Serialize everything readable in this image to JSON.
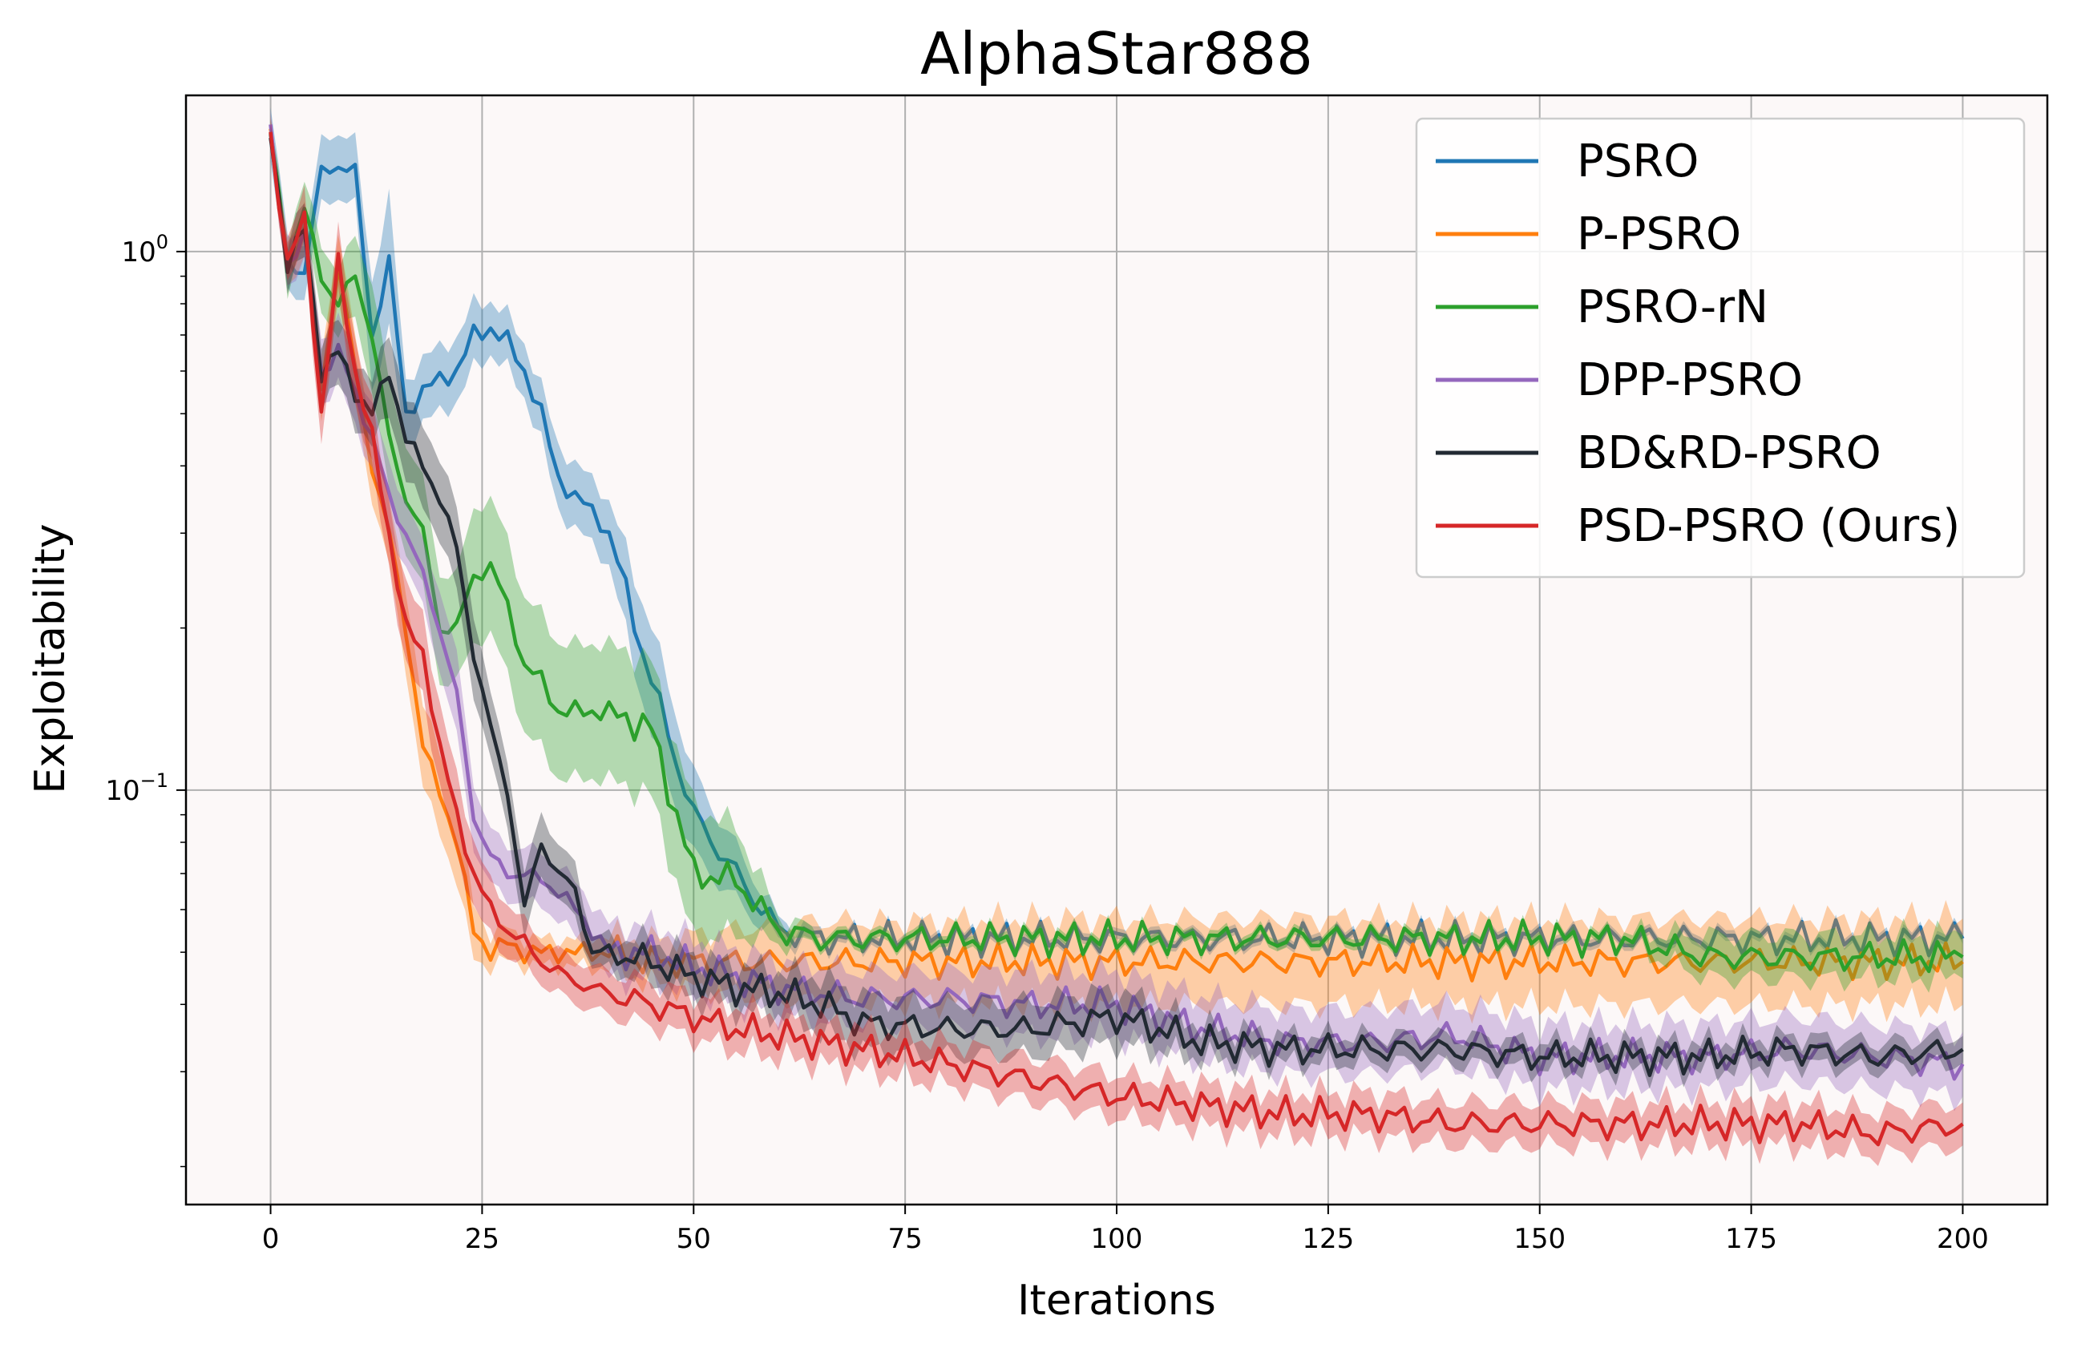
{
  "chart_data": {
    "type": "line",
    "title": "AlphaStar888",
    "xlabel": "Iterations",
    "ylabel": "Exploitability",
    "yscale": "log",
    "xlim": [
      -10,
      210
    ],
    "ylim": [
      0.017,
      1.95
    ],
    "xticks": [
      0,
      25,
      50,
      75,
      100,
      125,
      150,
      175,
      200
    ],
    "yticks": [
      {
        "value": 1.0,
        "base": "10",
        "exp": "0"
      },
      {
        "value": 0.1,
        "base": "10",
        "exp": "−1"
      }
    ],
    "grid": true,
    "legend_position": "upper right",
    "plot_background": "#fcf8f8",
    "x": [
      0,
      2,
      4,
      6,
      8,
      10,
      12,
      14,
      16,
      18,
      20,
      22,
      24,
      26,
      28,
      30,
      32,
      34,
      36,
      38,
      40,
      45,
      50,
      55,
      60,
      65,
      70,
      80,
      90,
      100,
      110,
      120,
      130,
      140,
      150,
      160,
      170,
      180,
      190,
      200
    ],
    "series": [
      {
        "name": "PSRO",
        "color": "#1f77b4",
        "values": [
          1.65,
          0.95,
          0.92,
          1.4,
          1.45,
          1.4,
          0.7,
          0.95,
          0.5,
          0.55,
          0.58,
          0.6,
          0.7,
          0.72,
          0.68,
          0.6,
          0.5,
          0.38,
          0.35,
          0.33,
          0.3,
          0.16,
          0.09,
          0.07,
          0.055,
          0.053,
          0.053,
          0.053,
          0.053,
          0.053,
          0.053,
          0.053,
          0.053,
          0.053,
          0.053,
          0.053,
          0.053,
          0.053,
          0.053,
          0.053
        ],
        "band": [
          0.1,
          0.1,
          0.1,
          0.12,
          0.12,
          0.12,
          0.2,
          0.25,
          0.12,
          0.12,
          0.12,
          0.12,
          0.12,
          0.1,
          0.1,
          0.1,
          0.1,
          0.12,
          0.12,
          0.12,
          0.12,
          0.2,
          0.15,
          0.1,
          0.04,
          0.02,
          0.02,
          0.02,
          0.02,
          0.02,
          0.02,
          0.02,
          0.02,
          0.02,
          0.02,
          0.02,
          0.02,
          0.02,
          0.02,
          0.02
        ]
      },
      {
        "name": "P-PSRO",
        "color": "#ff7f0e",
        "values": [
          1.65,
          0.95,
          1.1,
          0.55,
          0.95,
          0.6,
          0.4,
          0.3,
          0.2,
          0.12,
          0.1,
          0.08,
          0.055,
          0.05,
          0.052,
          0.05,
          0.05,
          0.05,
          0.05,
          0.05,
          0.05,
          0.048,
          0.048,
          0.048,
          0.048,
          0.048,
          0.048,
          0.048,
          0.048,
          0.048,
          0.048,
          0.048,
          0.048,
          0.048,
          0.048,
          0.048,
          0.048,
          0.048,
          0.048,
          0.048
        ],
        "band": [
          0.05,
          0.08,
          0.1,
          0.12,
          0.12,
          0.12,
          0.12,
          0.12,
          0.15,
          0.15,
          0.15,
          0.15,
          0.1,
          0.06,
          0.06,
          0.05,
          0.05,
          0.05,
          0.05,
          0.06,
          0.06,
          0.08,
          0.1,
          0.12,
          0.14,
          0.15,
          0.15,
          0.15,
          0.16,
          0.16,
          0.16,
          0.16,
          0.16,
          0.16,
          0.16,
          0.16,
          0.16,
          0.16,
          0.16,
          0.16
        ]
      },
      {
        "name": "PSRO-rN",
        "color": "#2ca02c",
        "values": [
          1.65,
          0.95,
          1.2,
          0.9,
          0.8,
          0.9,
          0.7,
          0.45,
          0.35,
          0.3,
          0.2,
          0.2,
          0.25,
          0.26,
          0.22,
          0.17,
          0.16,
          0.14,
          0.14,
          0.14,
          0.14,
          0.13,
          0.07,
          0.068,
          0.055,
          0.053,
          0.053,
          0.053,
          0.053,
          0.053,
          0.053,
          0.053,
          0.053,
          0.053,
          0.053,
          0.053,
          0.049,
          0.049,
          0.049,
          0.049
        ],
        "band": [
          0.05,
          0.1,
          0.1,
          0.12,
          0.12,
          0.15,
          0.2,
          0.2,
          0.2,
          0.2,
          0.2,
          0.2,
          0.25,
          0.25,
          0.25,
          0.25,
          0.25,
          0.25,
          0.25,
          0.25,
          0.25,
          0.25,
          0.25,
          0.2,
          0.05,
          0.02,
          0.02,
          0.02,
          0.02,
          0.02,
          0.02,
          0.02,
          0.02,
          0.02,
          0.02,
          0.02,
          0.08,
          0.08,
          0.08,
          0.08
        ]
      },
      {
        "name": "DPP-PSRO",
        "color": "#9467bd",
        "values": [
          1.65,
          0.95,
          1.05,
          0.6,
          0.65,
          0.55,
          0.45,
          0.35,
          0.3,
          0.25,
          0.2,
          0.15,
          0.09,
          0.075,
          0.07,
          0.07,
          0.068,
          0.065,
          0.06,
          0.055,
          0.05,
          0.05,
          0.047,
          0.045,
          0.043,
          0.042,
          0.041,
          0.041,
          0.04,
          0.04,
          0.036,
          0.034,
          0.034,
          0.035,
          0.032,
          0.032,
          0.032,
          0.033,
          0.032,
          0.031
        ],
        "band": [
          0.05,
          0.08,
          0.1,
          0.12,
          0.12,
          0.12,
          0.12,
          0.12,
          0.12,
          0.12,
          0.15,
          0.15,
          0.12,
          0.1,
          0.1,
          0.1,
          0.1,
          0.1,
          0.1,
          0.1,
          0.1,
          0.1,
          0.1,
          0.1,
          0.1,
          0.1,
          0.1,
          0.1,
          0.12,
          0.12,
          0.12,
          0.12,
          0.12,
          0.12,
          0.12,
          0.12,
          0.12,
          0.12,
          0.12,
          0.12
        ]
      },
      {
        "name": "BD&RD-PSRO",
        "color": "#222a33",
        "values": [
          1.65,
          0.95,
          1.1,
          0.6,
          0.65,
          0.55,
          0.5,
          0.6,
          0.45,
          0.4,
          0.35,
          0.28,
          0.18,
          0.13,
          0.1,
          0.06,
          0.08,
          0.07,
          0.065,
          0.05,
          0.05,
          0.048,
          0.045,
          0.043,
          0.042,
          0.04,
          0.037,
          0.036,
          0.036,
          0.038,
          0.034,
          0.033,
          0.033,
          0.033,
          0.032,
          0.032,
          0.032,
          0.033,
          0.032,
          0.033
        ],
        "band": [
          0.05,
          0.08,
          0.1,
          0.12,
          0.12,
          0.12,
          0.12,
          0.15,
          0.15,
          0.15,
          0.15,
          0.15,
          0.15,
          0.12,
          0.12,
          0.12,
          0.12,
          0.1,
          0.1,
          0.06,
          0.06,
          0.08,
          0.08,
          0.08,
          0.08,
          0.1,
          0.1,
          0.1,
          0.1,
          0.1,
          0.06,
          0.05,
          0.05,
          0.05,
          0.05,
          0.05,
          0.05,
          0.05,
          0.05,
          0.05
        ]
      },
      {
        "name": "PSD-PSRO (Ours)",
        "color": "#d62728",
        "values": [
          1.65,
          0.95,
          1.15,
          0.5,
          0.95,
          0.6,
          0.45,
          0.3,
          0.2,
          0.18,
          0.12,
          0.09,
          0.07,
          0.06,
          0.055,
          0.052,
          0.048,
          0.046,
          0.044,
          0.043,
          0.042,
          0.04,
          0.038,
          0.036,
          0.035,
          0.034,
          0.033,
          0.031,
          0.029,
          0.027,
          0.026,
          0.025,
          0.025,
          0.024,
          0.024,
          0.024,
          0.024,
          0.024,
          0.023,
          0.024
        ],
        "band": [
          0.05,
          0.08,
          0.1,
          0.12,
          0.12,
          0.12,
          0.12,
          0.12,
          0.15,
          0.15,
          0.15,
          0.15,
          0.12,
          0.1,
          0.1,
          0.08,
          0.08,
          0.08,
          0.08,
          0.08,
          0.08,
          0.08,
          0.08,
          0.08,
          0.08,
          0.08,
          0.08,
          0.08,
          0.08,
          0.08,
          0.08,
          0.08,
          0.08,
          0.08,
          0.08,
          0.08,
          0.08,
          0.08,
          0.08,
          0.08
        ]
      }
    ]
  }
}
